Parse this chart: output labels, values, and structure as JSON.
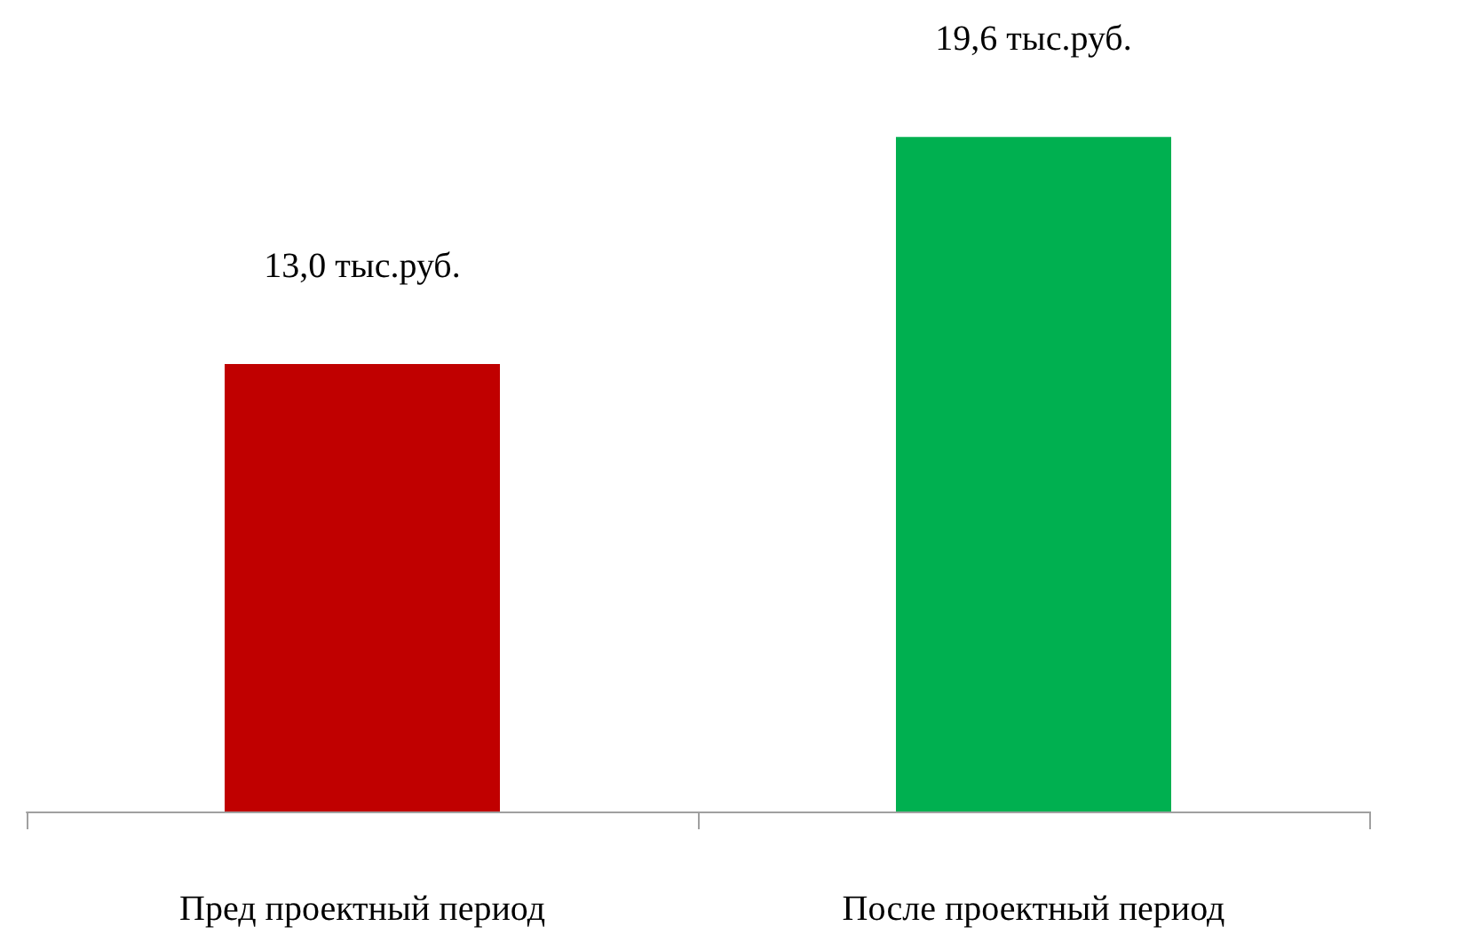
{
  "chart_data": {
    "type": "bar",
    "categories": [
      "Пред проектный период",
      "После проектный период"
    ],
    "values": [
      13.0,
      19.6
    ],
    "colors": [
      "#c00000",
      "#00b050"
    ],
    "value_labels": [
      "13,0 тыс.руб.",
      "19,6 тыс.руб."
    ]
  }
}
